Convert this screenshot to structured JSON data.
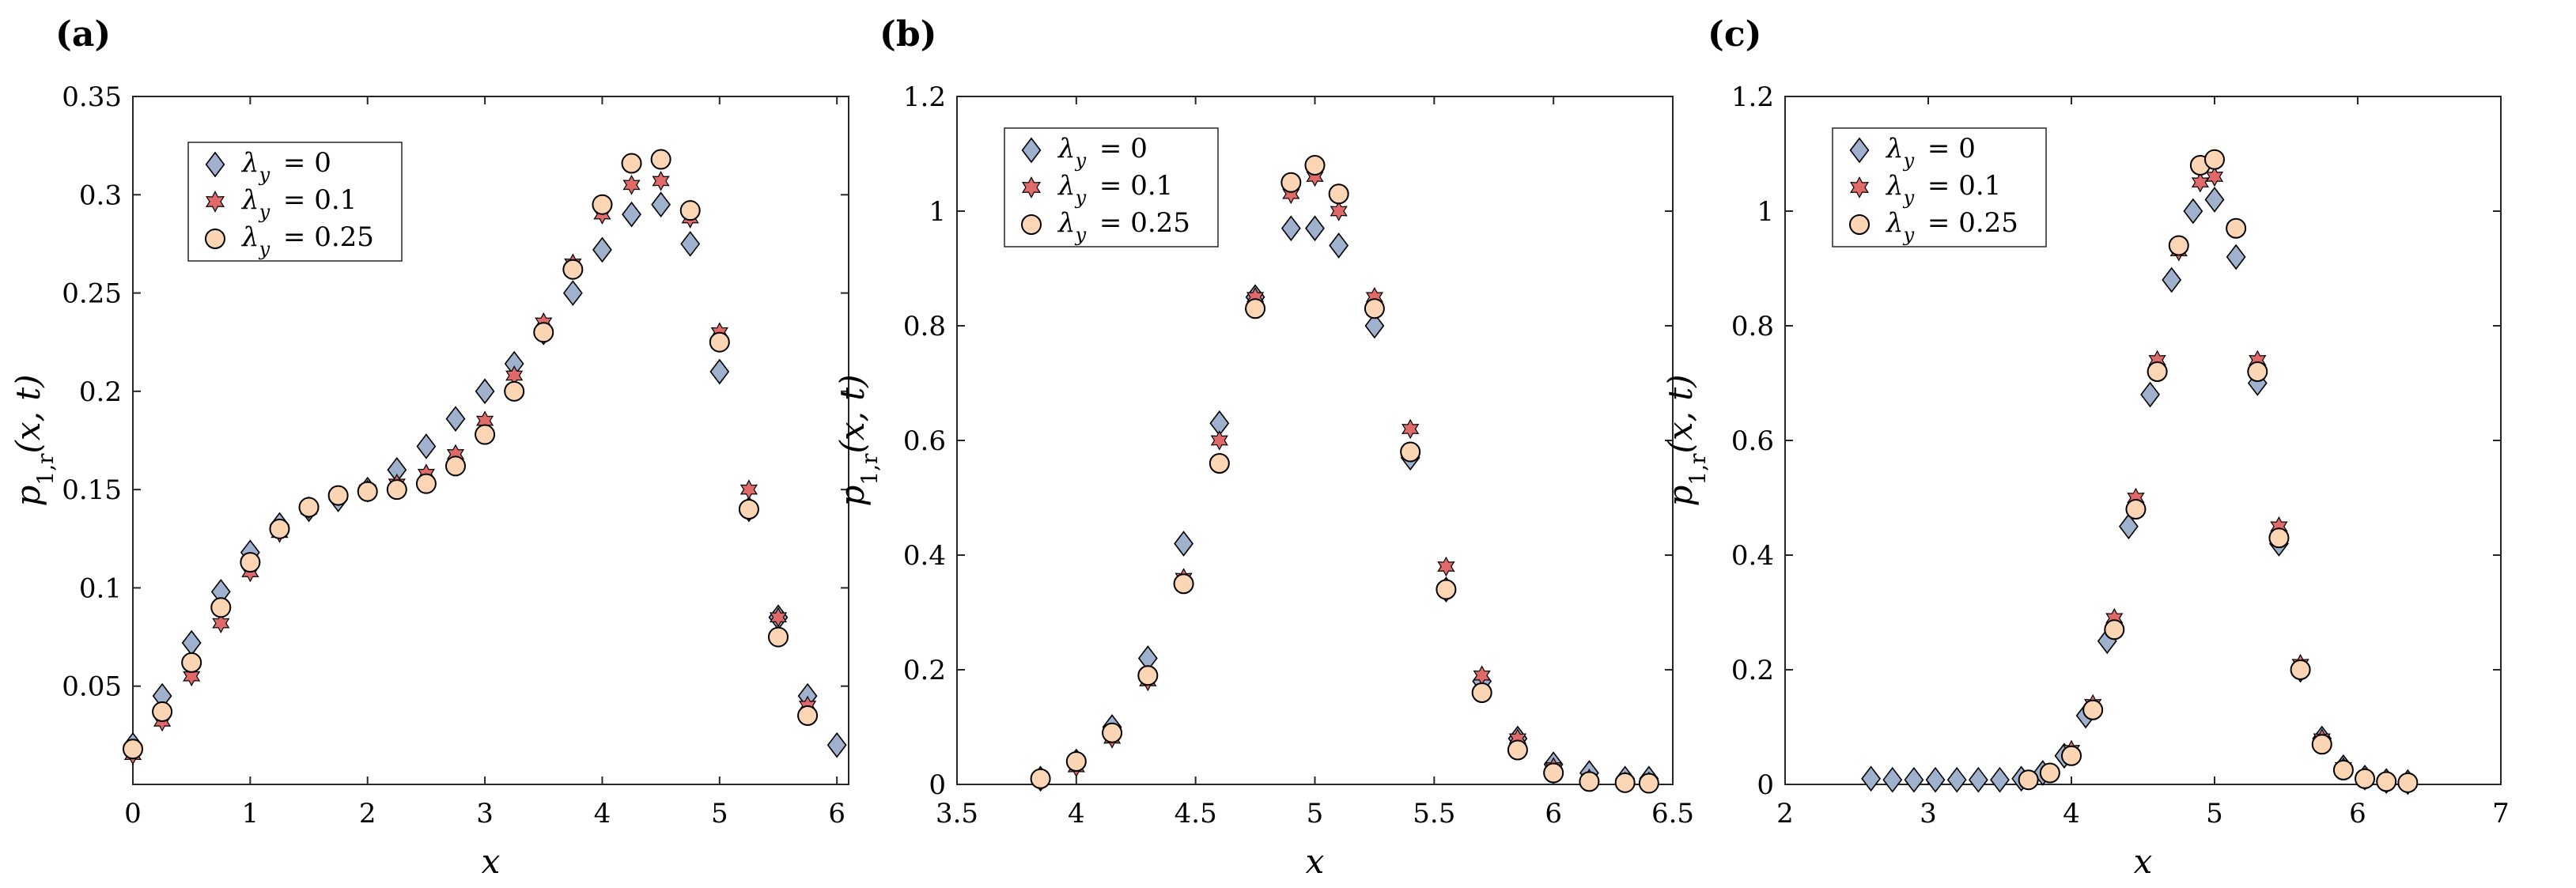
{
  "colors": {
    "lambda0_fill": "#9fb1cc",
    "lambda01_fill": "#e06a6a",
    "lambda025_fill": "#fcd6b4",
    "marker_edge": "#000000"
  },
  "legend_entries": [
    "λ_y = 0",
    "λ_y = 0.1",
    "λ_y = 0.25"
  ],
  "chart_data": [
    {
      "type": "scatter",
      "panel": "(a)",
      "xlabel": "x",
      "ylabel": "p_{1,r}(x,t)",
      "xlim": [
        0,
        6.1
      ],
      "ylim": [
        0,
        0.35
      ],
      "xticks": [
        0,
        1,
        2,
        3,
        4,
        5,
        6
      ],
      "xtick_labels": [
        "0",
        "1",
        "2",
        "3",
        "4",
        "5",
        "6"
      ],
      "yticks": [
        0.05,
        0.1,
        0.15,
        0.2,
        0.25,
        0.3,
        0.35
      ],
      "ytick_labels": [
        "0.05",
        "0.1",
        "0.15",
        "0.2",
        "0.25",
        "0.3",
        "0.35"
      ],
      "legend_position": "top-left",
      "series": [
        {
          "name": "λ_y = 0",
          "marker": "diamond",
          "x": [
            0,
            0.25,
            0.5,
            0.75,
            1.0,
            1.25,
            1.5,
            1.75,
            2.0,
            2.25,
            2.5,
            2.75,
            3.0,
            3.25,
            3.5,
            3.75,
            4.0,
            4.25,
            4.5,
            4.75,
            5.0,
            5.25,
            5.5,
            5.75,
            6.0
          ],
          "y": [
            0.02,
            0.045,
            0.072,
            0.098,
            0.118,
            0.132,
            0.14,
            0.145,
            0.15,
            0.16,
            0.172,
            0.186,
            0.2,
            0.214,
            0.23,
            0.25,
            0.272,
            0.29,
            0.295,
            0.275,
            0.21,
            0.14,
            0.085,
            0.045,
            0.02
          ]
        },
        {
          "name": "λ_y = 0.1",
          "marker": "hexagram",
          "x": [
            0,
            0.25,
            0.5,
            0.75,
            1.0,
            1.25,
            1.5,
            1.75,
            2.0,
            2.25,
            2.5,
            2.75,
            3.0,
            3.25,
            3.5,
            3.75,
            4.0,
            4.25,
            4.5,
            4.75,
            5.0,
            5.25,
            5.5,
            5.75
          ],
          "y": [
            0.015,
            0.032,
            0.055,
            0.082,
            0.108,
            0.128,
            0.14,
            0.147,
            0.15,
            0.153,
            0.158,
            0.168,
            0.185,
            0.208,
            0.235,
            0.265,
            0.29,
            0.305,
            0.307,
            0.288,
            0.23,
            0.15,
            0.085,
            0.04
          ]
        },
        {
          "name": "λ_y = 0.25",
          "marker": "circle",
          "x": [
            0,
            0.25,
            0.5,
            0.75,
            1.0,
            1.25,
            1.5,
            1.75,
            2.0,
            2.25,
            2.5,
            2.75,
            3.0,
            3.25,
            3.5,
            3.75,
            4.0,
            4.25,
            4.5,
            4.75,
            5.0,
            5.25,
            5.5,
            5.75
          ],
          "y": [
            0.018,
            0.037,
            0.062,
            0.09,
            0.113,
            0.13,
            0.141,
            0.147,
            0.149,
            0.15,
            0.153,
            0.162,
            0.178,
            0.2,
            0.23,
            0.262,
            0.295,
            0.316,
            0.318,
            0.292,
            0.225,
            0.14,
            0.075,
            0.035
          ]
        }
      ]
    },
    {
      "type": "scatter",
      "panel": "(b)",
      "xlabel": "x",
      "ylabel": "p_{1,r}(x,t)",
      "xlim": [
        3.5,
        6.5
      ],
      "ylim": [
        0,
        1.2
      ],
      "xticks": [
        3.5,
        4,
        4.5,
        5,
        5.5,
        6,
        6.5
      ],
      "xtick_labels": [
        "3.5",
        "4",
        "4.5",
        "5",
        "5.5",
        "6",
        "6.5"
      ],
      "yticks": [
        0,
        0.2,
        0.4,
        0.6,
        0.8,
        1,
        1.2
      ],
      "ytick_labels": [
        "0",
        "0.2",
        "0.4",
        "0.6",
        "0.8",
        "1",
        "1.2"
      ],
      "legend_position": "top-left",
      "series": [
        {
          "name": "λ_y = 0",
          "marker": "diamond",
          "x": [
            3.85,
            4.0,
            4.15,
            4.3,
            4.45,
            4.6,
            4.75,
            4.9,
            5.0,
            5.1,
            5.25,
            5.4,
            5.55,
            5.7,
            5.85,
            6.0,
            6.15,
            6.3,
            6.4
          ],
          "y": [
            0.01,
            0.04,
            0.1,
            0.22,
            0.42,
            0.63,
            0.85,
            0.97,
            0.97,
            0.94,
            0.8,
            0.57,
            0.34,
            0.18,
            0.08,
            0.035,
            0.02,
            0.01,
            0.01
          ]
        },
        {
          "name": "λ_y = 0.1",
          "marker": "hexagram",
          "x": [
            3.85,
            4.0,
            4.15,
            4.3,
            4.45,
            4.6,
            4.75,
            4.9,
            5.0,
            5.1,
            5.25,
            5.4,
            5.55,
            5.7,
            5.85,
            6.0,
            6.15,
            6.3,
            6.4
          ],
          "y": [
            0.01,
            0.03,
            0.08,
            0.18,
            0.36,
            0.6,
            0.85,
            1.03,
            1.06,
            1.0,
            0.85,
            0.62,
            0.38,
            0.19,
            0.08,
            0.03,
            0.01,
            0.005,
            0.005
          ]
        },
        {
          "name": "λ_y = 0.25",
          "marker": "circle",
          "x": [
            3.85,
            4.0,
            4.15,
            4.3,
            4.45,
            4.6,
            4.75,
            4.9,
            5.0,
            5.1,
            5.25,
            5.4,
            5.55,
            5.7,
            5.85,
            6.0,
            6.15,
            6.3,
            6.4
          ],
          "y": [
            0.01,
            0.04,
            0.09,
            0.19,
            0.35,
            0.56,
            0.83,
            1.05,
            1.08,
            1.03,
            0.83,
            0.58,
            0.34,
            0.16,
            0.06,
            0.02,
            0.005,
            0.003,
            0.002
          ]
        }
      ]
    },
    {
      "type": "scatter",
      "panel": "(c)",
      "xlabel": "x",
      "ylabel": "p_{1,r}(x,t)",
      "xlim": [
        2,
        7
      ],
      "ylim": [
        0,
        1.2
      ],
      "xticks": [
        2,
        3,
        4,
        5,
        6,
        7
      ],
      "xtick_labels": [
        "2",
        "3",
        "4",
        "5",
        "6",
        "7"
      ],
      "yticks": [
        0,
        0.2,
        0.4,
        0.6,
        0.8,
        1,
        1.2
      ],
      "ytick_labels": [
        "0",
        "0.2",
        "0.4",
        "0.6",
        "0.8",
        "1",
        "1.2"
      ],
      "legend_position": "top-left",
      "series": [
        {
          "name": "λ_y = 0",
          "marker": "diamond",
          "x": [
            2.6,
            2.75,
            2.9,
            3.05,
            3.2,
            3.35,
            3.5,
            3.65,
            3.8,
            3.95,
            4.1,
            4.25,
            4.4,
            4.55,
            4.7,
            4.85,
            5.0,
            5.15,
            5.3,
            5.45,
            5.6,
            5.75,
            5.9,
            6.05,
            6.2,
            6.35
          ],
          "y": [
            0.01,
            0.008,
            0.008,
            0.008,
            0.008,
            0.008,
            0.008,
            0.01,
            0.02,
            0.05,
            0.12,
            0.25,
            0.45,
            0.68,
            0.88,
            1.0,
            1.02,
            0.92,
            0.7,
            0.42,
            0.2,
            0.08,
            0.03,
            0.012,
            0.006,
            0.004
          ]
        },
        {
          "name": "λ_y = 0.1",
          "marker": "hexagram",
          "x": [
            3.7,
            3.85,
            4.0,
            4.15,
            4.3,
            4.45,
            4.6,
            4.75,
            4.9,
            5.0,
            5.15,
            5.3,
            5.45,
            5.6,
            5.75,
            5.9,
            6.05,
            6.2,
            6.35
          ],
          "y": [
            0.008,
            0.02,
            0.06,
            0.14,
            0.29,
            0.5,
            0.74,
            0.93,
            1.05,
            1.06,
            0.97,
            0.74,
            0.45,
            0.21,
            0.08,
            0.03,
            0.012,
            0.006,
            0.004
          ]
        },
        {
          "name": "λ_y = 0.25",
          "marker": "circle",
          "x": [
            3.7,
            3.85,
            4.0,
            4.15,
            4.3,
            4.45,
            4.6,
            4.75,
            4.9,
            5.0,
            5.15,
            5.3,
            5.45,
            5.6,
            5.75,
            5.9,
            6.05,
            6.2,
            6.35
          ],
          "y": [
            0.008,
            0.02,
            0.05,
            0.13,
            0.27,
            0.48,
            0.72,
            0.94,
            1.08,
            1.09,
            0.97,
            0.72,
            0.43,
            0.2,
            0.07,
            0.025,
            0.01,
            0.005,
            0.003
          ]
        }
      ]
    }
  ]
}
